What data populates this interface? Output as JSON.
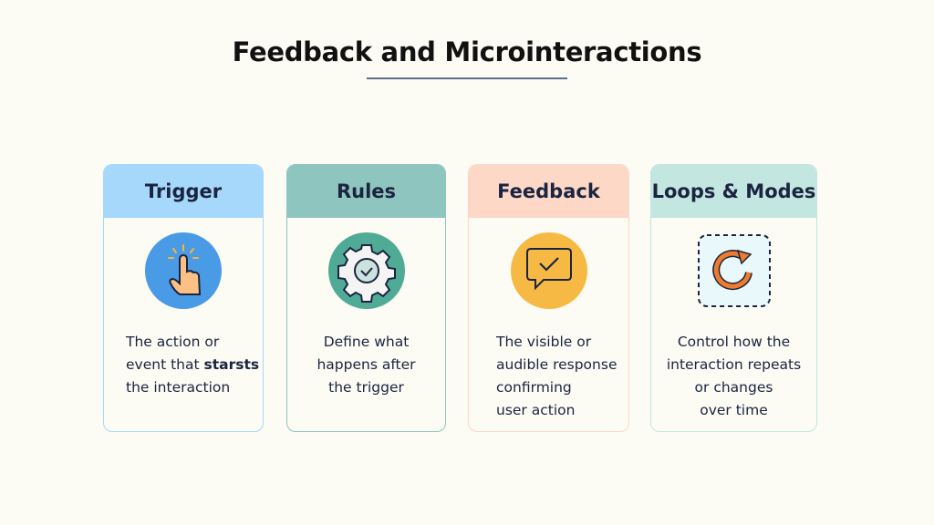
{
  "title": "Feedback and Microinteractions",
  "cards": [
    {
      "heading": "Trigger",
      "icon": "tap-hand-icon",
      "header_color": "#a6d8fb",
      "border_color": "#a6d8fb",
      "lines": [
        "The action or",
        "event that ",
        "the interaction"
      ],
      "bold": "starsts"
    },
    {
      "heading": "Rules",
      "icon": "gear-check-icon",
      "header_color": "#8ec5bf",
      "border_color": "#8ec5bf",
      "lines": [
        "Define what",
        "happens after",
        "the trigger"
      ]
    },
    {
      "heading": "Feedback",
      "icon": "chat-check-icon",
      "header_color": "#fdd8c7",
      "border_color": "#fdd8c7",
      "lines": [
        "The visible or",
        "audible response",
        "confirming",
        "user action"
      ]
    },
    {
      "heading": "Loops & Modes",
      "icon": "loop-arrow-icon",
      "header_color": "#c3e6e1",
      "border_color": "#c3e6e1",
      "lines": [
        "Control how the",
        "interaction repeats",
        "or changes",
        "over time"
      ]
    }
  ]
}
